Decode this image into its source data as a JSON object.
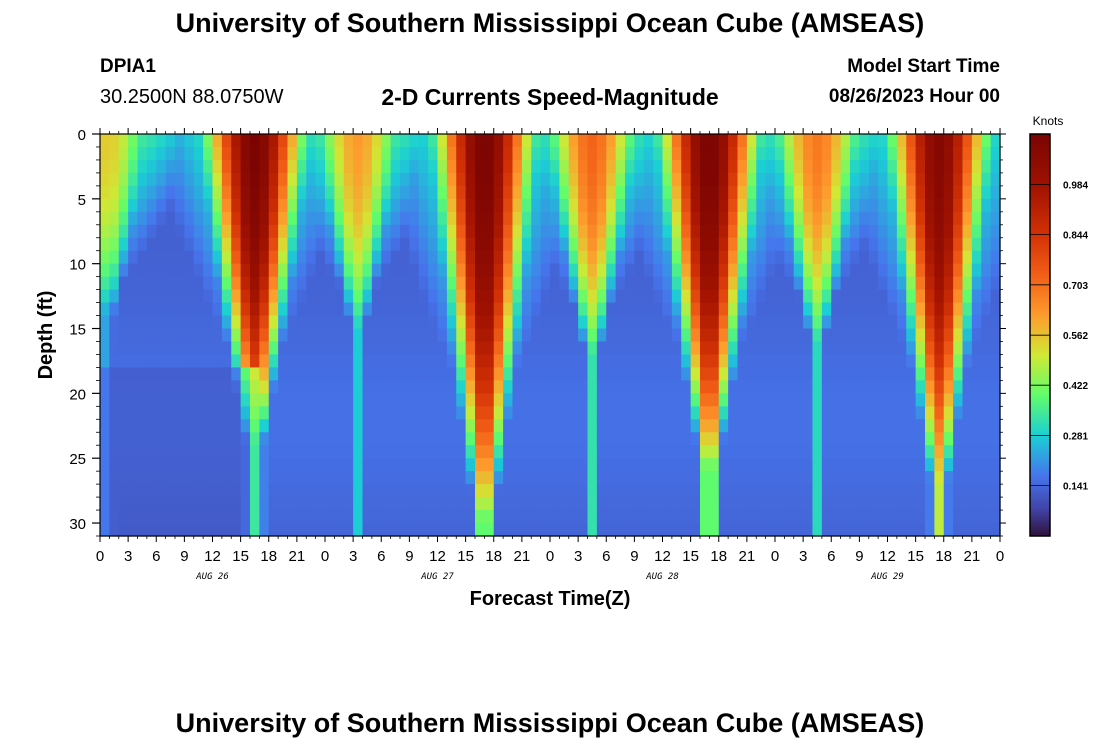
{
  "header": {
    "title": "University of Southern Mississippi Ocean Cube (AMSEAS)",
    "station": "DPIA1",
    "coords": "30.2500N  88.0750W",
    "plot_title": "2-D Currents Speed-Magnitude",
    "model_label": "Model Start Time",
    "model_time": "08/26/2023 Hour 00"
  },
  "footer": {
    "title": "University of Southern Mississippi Ocean Cube (AMSEAS)"
  },
  "chart_data": {
    "type": "heatmap",
    "title": "2-D Currents Speed-Magnitude",
    "xlabel": "Forecast Time(Z)",
    "ylabel": "Depth (ft)",
    "xlim": [
      0,
      96
    ],
    "ylim": [
      31,
      0
    ],
    "x_tick_labels": [
      "0",
      "3",
      "6",
      "9",
      "12",
      "15",
      "18",
      "21",
      "0",
      "3",
      "6",
      "9",
      "12",
      "15",
      "18",
      "21",
      "0",
      "3",
      "6",
      "9",
      "12",
      "15",
      "18",
      "21",
      "0",
      "3",
      "6",
      "9",
      "12",
      "15",
      "18",
      "21",
      "0"
    ],
    "y_ticks": [
      0,
      5,
      10,
      15,
      20,
      25,
      30
    ],
    "y_tick_labels": [
      "0",
      "5",
      "10",
      "15",
      "20",
      "25",
      "30"
    ],
    "date_labels": [
      {
        "label": "AUG 26",
        "hour": 12
      },
      {
        "label": "AUG 27",
        "hour": 36
      },
      {
        "label": "AUG 28",
        "hour": 60
      },
      {
        "label": "AUG 29",
        "hour": 84
      }
    ],
    "colorbar": {
      "unit": "Knots",
      "min": 0.0,
      "max": 1.125,
      "ticks": [
        0.141,
        0.281,
        0.422,
        0.562,
        0.703,
        0.844,
        0.984
      ],
      "tick_labels": [
        "0.141",
        "0.281",
        "0.422",
        "0.562",
        "0.703",
        "0.844",
        "0.984"
      ]
    },
    "grid": false,
    "speed_maxima": [
      {
        "hour": 0.8,
        "surface_knots": 0.55,
        "max_depth_ft": 14
      },
      {
        "hour": 16.5,
        "surface_knots": 1.12,
        "max_depth_ft": 24
      },
      {
        "hour": 27.5,
        "surface_knots": 0.62,
        "max_depth_ft": 15
      },
      {
        "hour": 41.0,
        "surface_knots": 1.12,
        "max_depth_ft": 30
      },
      {
        "hour": 52.5,
        "surface_knots": 0.72,
        "max_depth_ft": 17
      },
      {
        "hour": 65.0,
        "surface_knots": 1.12,
        "max_depth_ft": 26
      },
      {
        "hour": 76.5,
        "surface_knots": 0.68,
        "max_depth_ft": 16
      },
      {
        "hour": 89.5,
        "surface_knots": 1.08,
        "max_depth_ft": 27
      }
    ]
  }
}
